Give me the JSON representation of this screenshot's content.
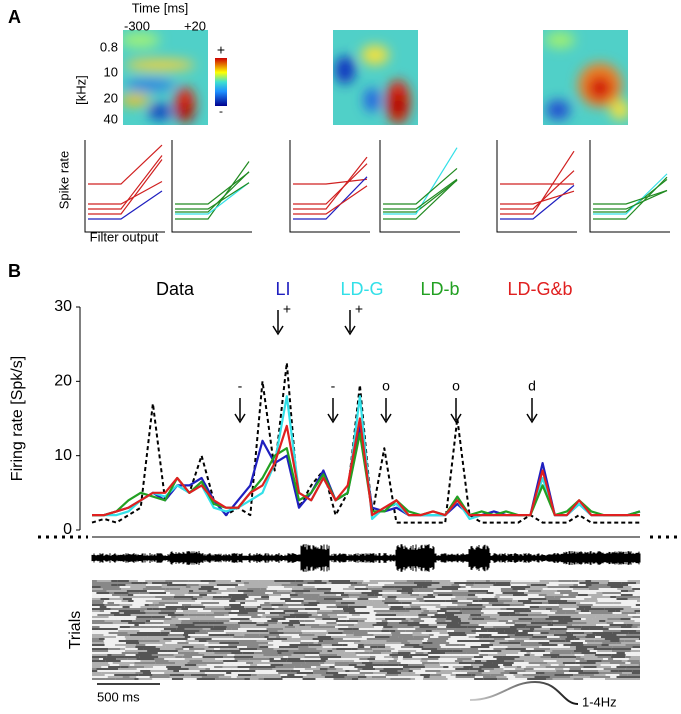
{
  "panel_labels": [
    "A",
    "B"
  ],
  "panel_a": {
    "time_label": "Time [ms]",
    "time_ticks": [
      "-300",
      "+20"
    ],
    "freq_ticks": [
      "0.8",
      "10",
      "20",
      "40"
    ],
    "freq_label": "[kHz]",
    "colorbar_labels": [
      "+",
      "-"
    ],
    "y_label": "Spike rate",
    "x_label": "Filter output"
  },
  "chart_data": {
    "type": "line",
    "ylabel": "Firing rate [Spk/s]",
    "ylim": [
      0,
      30
    ],
    "yticks": [
      0,
      10,
      20,
      30
    ],
    "series": [
      {
        "name": "Data",
        "color": "#000000",
        "dashed": true,
        "values": [
          1,
          1.5,
          1,
          2,
          3,
          17,
          4,
          6,
          5,
          10,
          4,
          2,
          3,
          2,
          20,
          8,
          22.5,
          3,
          6,
          8,
          2,
          5,
          19.5,
          2,
          11,
          1,
          1,
          1,
          1,
          1,
          15,
          2,
          1,
          1,
          1,
          1,
          2,
          1,
          1,
          1,
          2,
          1,
          1,
          1,
          1,
          1
        ]
      },
      {
        "name": "LI",
        "color": "#1f1fbf",
        "values": [
          2,
          2,
          2.5,
          3,
          4,
          5,
          4,
          6,
          6,
          7,
          4,
          2,
          4,
          6,
          12,
          9,
          10,
          3,
          5,
          8,
          4,
          5,
          14,
          3,
          2.5,
          3,
          2,
          2,
          2,
          2,
          3.5,
          2,
          2,
          2.5,
          2,
          2,
          2,
          9,
          2,
          2,
          3.5,
          2,
          2,
          2,
          2,
          2.5
        ]
      },
      {
        "name": "LD-G",
        "color": "#33e0e8",
        "values": [
          2,
          2,
          2,
          2.5,
          4,
          5,
          4.5,
          6,
          5,
          6,
          3,
          2.5,
          3,
          4,
          5,
          9,
          18,
          5,
          4,
          7,
          4,
          5,
          18,
          1.5,
          3,
          3.5,
          2,
          2,
          2,
          2,
          4,
          1.5,
          2,
          2,
          2,
          2,
          2,
          7,
          2,
          2,
          3.5,
          2,
          2,
          2,
          2,
          2
        ]
      },
      {
        "name": "LD-b",
        "color": "#22a022",
        "values": [
          2,
          2,
          2.5,
          4,
          5,
          4.5,
          4,
          7,
          5,
          6.5,
          3.5,
          3,
          3,
          5,
          7,
          10,
          11,
          4,
          5,
          7.5,
          4,
          5,
          13,
          2.5,
          2.5,
          4,
          2.5,
          2,
          2.5,
          2,
          4.5,
          2,
          2.5,
          2,
          2.5,
          2,
          2,
          6,
          2,
          2.5,
          4,
          2.5,
          2,
          2,
          2,
          2.5
        ]
      },
      {
        "name": "LD-G&b",
        "color": "#e02020",
        "values": [
          2,
          2,
          2.5,
          3,
          4,
          5,
          5,
          7,
          5,
          6,
          4,
          3,
          3,
          5,
          6,
          9,
          14,
          5,
          4,
          7,
          4,
          6,
          15,
          2,
          3,
          4,
          2,
          2,
          2.5,
          2,
          4,
          2,
          2,
          2,
          2,
          2,
          2,
          8,
          2,
          2,
          4,
          2,
          2,
          2,
          2,
          2
        ]
      }
    ],
    "annotations": [
      "+",
      "+",
      "-",
      "-",
      "o",
      "o",
      "d"
    ]
  },
  "trials_label": "Trials",
  "scale_label": "500 ms",
  "band_label": "1-4Hz"
}
